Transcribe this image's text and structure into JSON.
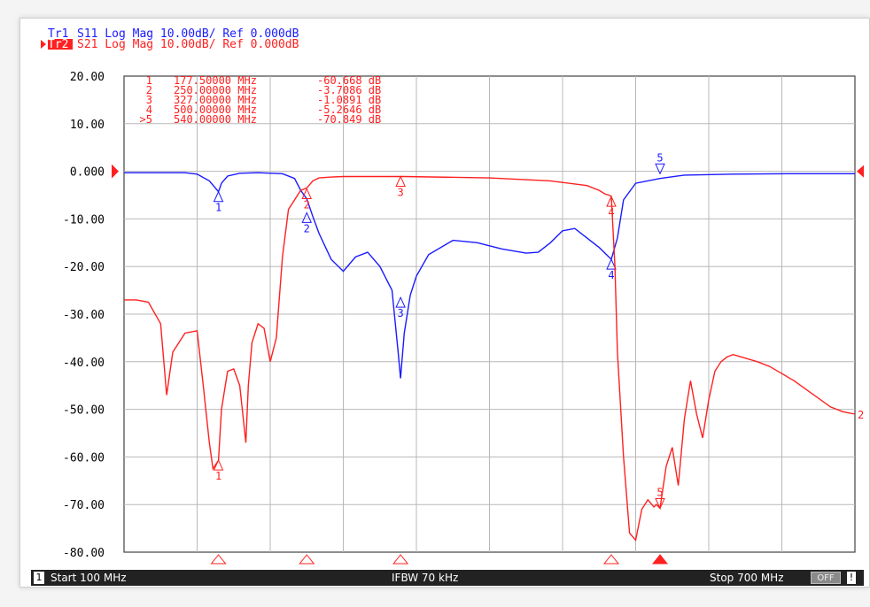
{
  "traces": [
    {
      "id": "Tr1",
      "param": "S11",
      "format": "Log Mag",
      "scale": "10.00dB/",
      "ref": "Ref 0.000dB",
      "color": "#1a1aff"
    },
    {
      "id": "Tr2",
      "param": "S21",
      "format": "Log Mag",
      "scale": "10.00dB/",
      "ref": "Ref 0.000dB",
      "color": "#ff2020"
    }
  ],
  "markers": [
    {
      "label": "1",
      "freq": "177.50000 MHz",
      "value": "-60.668 dB"
    },
    {
      "label": "2",
      "freq": "250.00000 MHz",
      "value": "-3.7086 dB"
    },
    {
      "label": "3",
      "freq": "327.00000 MHz",
      "value": "-1.0891 dB"
    },
    {
      "label": "4",
      "freq": "500.00000 MHz",
      "value": "-5.2646 dB"
    },
    {
      "label": ">5",
      "freq": "540.00000 MHz",
      "value": "-70.849 dB"
    }
  ],
  "status": {
    "channel": "1",
    "start": "Start 100 MHz",
    "ifbw": "IFBW 70 kHz",
    "stop": "Stop 700 MHz",
    "off": "OFF",
    "bang": "!"
  },
  "chart_data": {
    "type": "line",
    "xlim": [
      100,
      700
    ],
    "ylim": [
      -80,
      20
    ],
    "y_tick_labels": [
      "20.00",
      "10.00",
      "0.000",
      "-10.00",
      "-20.00",
      "-30.00",
      "-40.00",
      "-50.00",
      "-60.00",
      "-70.00",
      "-80.00"
    ],
    "grid": true,
    "series": [
      {
        "name": "S11",
        "color": "#1a1aff",
        "x": [
          100,
          150,
          160,
          170,
          175,
          177.5,
          180,
          185,
          195,
          210,
          230,
          240,
          245,
          250,
          255,
          260,
          270,
          280,
          290,
          300,
          310,
          320,
          325,
          327,
          330,
          335,
          340,
          350,
          370,
          390,
          410,
          430,
          440,
          450,
          460,
          470,
          480,
          490,
          500,
          505,
          510,
          520,
          540,
          560,
          600,
          650,
          700
        ],
        "y": [
          -0.3,
          -0.3,
          -0.6,
          -2,
          -3.5,
          -4.3,
          -2.5,
          -1,
          -0.4,
          -0.3,
          -0.5,
          -1.5,
          -4,
          -5.8,
          -9.5,
          -13,
          -18.5,
          -21,
          -18,
          -17,
          -20,
          -25,
          -38,
          -43.5,
          -34,
          -26,
          -22,
          -17.5,
          -14.5,
          -15,
          -16.3,
          -17.2,
          -17,
          -15,
          -12.5,
          -12,
          -14,
          -16,
          -18.5,
          -14,
          -6,
          -2.5,
          -1.5,
          -0.8,
          -0.6,
          -0.5,
          -0.5
        ],
        "markers": [
          {
            "label": "1",
            "x": 177.5,
            "y": -4.3
          },
          {
            "label": "2",
            "x": 250,
            "y": -8.7
          },
          {
            "label": "3",
            "x": 327,
            "y": -26.5
          },
          {
            "label": "4",
            "x": 500,
            "y": -18.5
          },
          {
            "label": "5",
            "x": 540,
            "y": -0.5
          }
        ]
      },
      {
        "name": "S21",
        "color": "#ff2020",
        "x": [
          100,
          110,
          120,
          130,
          135,
          140,
          150,
          160,
          165,
          170,
          173,
          177.5,
          180,
          185,
          190,
          195,
          200,
          202,
          205,
          210,
          215,
          220,
          225,
          230,
          235,
          240,
          245,
          248,
          250,
          255,
          260,
          270,
          280,
          300,
          330,
          400,
          450,
          480,
          490,
          495,
          498,
          500,
          503,
          505,
          510,
          515,
          520,
          525,
          530,
          535,
          537,
          540,
          545,
          550,
          555,
          560,
          565,
          570,
          575,
          580,
          585,
          590,
          595,
          600,
          620,
          630,
          650,
          680,
          690,
          700
        ],
        "y": [
          -27,
          -27,
          -27.5,
          -32,
          -47,
          -38,
          -34,
          -33.5,
          -45,
          -57,
          -62.5,
          -60.7,
          -50,
          -42,
          -41.5,
          -45,
          -57,
          -45,
          -36,
          -32,
          -33,
          -40,
          -35,
          -18,
          -8,
          -6,
          -4,
          -3.7,
          -3.5,
          -2,
          -1.4,
          -1.2,
          -1.1,
          -1.09,
          -1.1,
          -1.4,
          -2,
          -3,
          -4,
          -4.8,
          -5,
          -5.26,
          -20,
          -38,
          -60,
          -76,
          -77.5,
          -71,
          -69,
          -70.5,
          -70,
          -70.8,
          -62,
          -58,
          -66,
          -52,
          -44,
          -51,
          -56,
          -48,
          -42,
          -40,
          -39,
          -38.5,
          -40,
          -41,
          -44,
          -49.5,
          -50.5,
          -51
        ],
        "markers": [
          {
            "label": "1",
            "x": 177.5,
            "y": -60.7
          },
          {
            "label": "2",
            "x": 250,
            "y": -3.7
          },
          {
            "label": "3",
            "x": 327,
            "y": -1.1
          },
          {
            "label": "4",
            "x": 500,
            "y": -5.3
          },
          {
            "label": "5",
            "x": 540,
            "y": -70.8
          }
        ]
      }
    ],
    "stimulus_markers": [
      177.5,
      250,
      327,
      500,
      540
    ]
  }
}
